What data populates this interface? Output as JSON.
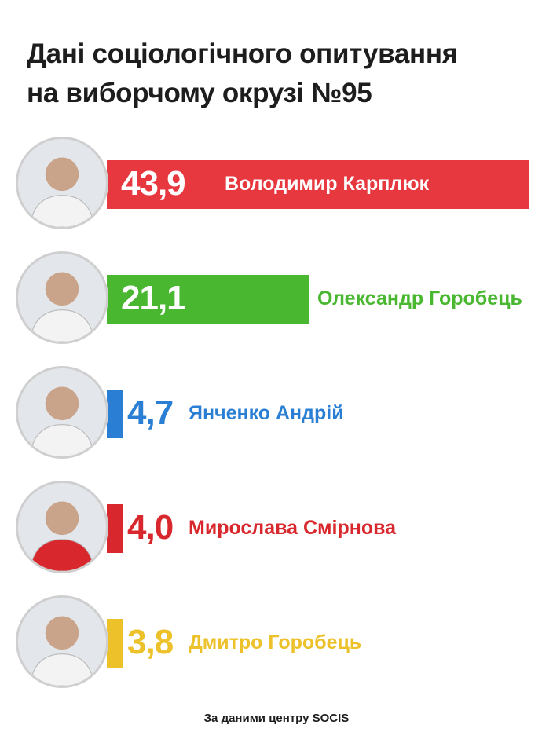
{
  "title_lines": [
    "Дані соціологічного опитування",
    "на виборчому окрузі №95"
  ],
  "source": "За даними центру SOCIS",
  "chart_data": {
    "type": "bar",
    "orientation": "horizontal",
    "categories": [
      "Володимир Карплюк",
      "Олександр Горобець",
      "Янченко Андрій",
      "Мирослава Смірнова",
      "Дмитро Горобець"
    ],
    "values": [
      43.9,
      21.1,
      4.7,
      4.0,
      3.8
    ],
    "value_labels": [
      "43,9",
      "21,1",
      "4,7",
      "4,0",
      "3,8"
    ],
    "colors": [
      "#e8383f",
      "#49b830",
      "#2a7fd4",
      "#d9282d",
      "#ecc12a"
    ],
    "avatar_icons": [
      "person-avatar-icon",
      "person-avatar-icon",
      "person-avatar-icon",
      "person-avatar-icon",
      "person-avatar-icon"
    ],
    "xlim": [
      0,
      43.9
    ],
    "grid": false,
    "legend": "none"
  }
}
